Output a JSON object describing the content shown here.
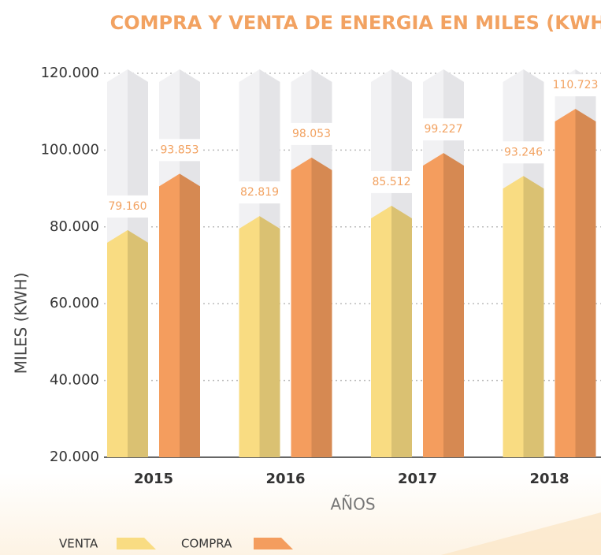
{
  "chart_data": {
    "type": "bar",
    "title": "COMPRA Y VENTA DE ENERGIA EN MILES (KWH)",
    "y_label": "MILES (KWH)",
    "x_label": "AÑOS",
    "categories": [
      "2015",
      "2016",
      "2017",
      "2018"
    ],
    "series": [
      {
        "name": "VENTA",
        "color": "#f9dc82",
        "values": [
          79160,
          82819,
          85512,
          93246
        ],
        "value_labels": [
          "79.160",
          "82.819",
          "85.512",
          "93.246"
        ]
      },
      {
        "name": "COMPRA",
        "color": "#f49d5e",
        "values": [
          93853,
          98053,
          99227,
          110723
        ],
        "value_labels": [
          "93.853",
          "98.053",
          "99.227",
          "110.723"
        ]
      }
    ],
    "ylim": [
      20000,
      120000
    ],
    "yticks": [
      {
        "value": 20000,
        "label": "20.000"
      },
      {
        "value": 40000,
        "label": "40.000"
      },
      {
        "value": 60000,
        "label": "60.000"
      },
      {
        "value": 80000,
        "label": "80.000"
      },
      {
        "value": 100000,
        "label": "100.000"
      },
      {
        "value": 120000,
        "label": "120.000"
      }
    ],
    "grid": true,
    "legend": "bottom-left"
  }
}
